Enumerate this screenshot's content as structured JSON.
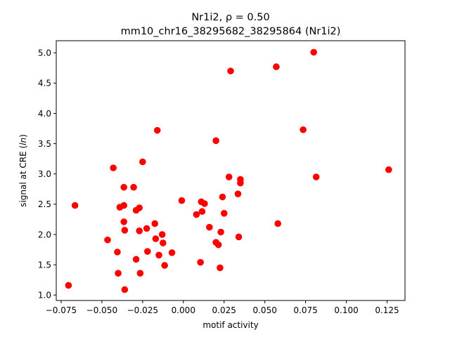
{
  "chart_data": {
    "type": "scatter",
    "title_line1": "Nr1i2, ρ = 0.50",
    "title_line2": "mm10_chr16_38295682_38295864 (Nr1i2)",
    "xlabel": "motif activity",
    "ylabel": "signal at CRE (ln)",
    "xlim": [
      -0.078,
      0.136
    ],
    "ylim": [
      0.91,
      5.2
    ],
    "xticks": [
      -0.075,
      -0.05,
      -0.025,
      0.0,
      0.025,
      0.05,
      0.075,
      0.1,
      0.125
    ],
    "xtick_labels": [
      "−0.075",
      "−0.050",
      "−0.025",
      "0.000",
      "0.025",
      "0.050",
      "0.075",
      "0.100",
      "0.125"
    ],
    "yticks": [
      1.0,
      1.5,
      2.0,
      2.5,
      3.0,
      3.5,
      4.0,
      4.5,
      5.0
    ],
    "ytick_labels": [
      "1.0",
      "1.5",
      "2.0",
      "2.5",
      "3.0",
      "3.5",
      "4.0",
      "4.5",
      "5.0"
    ],
    "grid": false,
    "marker_color": "#ff0000",
    "points": [
      {
        "x": -0.0705,
        "y": 1.16
      },
      {
        "x": -0.0665,
        "y": 2.48
      },
      {
        "x": -0.0465,
        "y": 1.91
      },
      {
        "x": -0.043,
        "y": 3.1
      },
      {
        "x": -0.0405,
        "y": 1.71
      },
      {
        "x": -0.04,
        "y": 1.36
      },
      {
        "x": -0.039,
        "y": 2.45
      },
      {
        "x": -0.0365,
        "y": 2.78
      },
      {
        "x": -0.0365,
        "y": 2.48
      },
      {
        "x": -0.0365,
        "y": 2.21
      },
      {
        "x": -0.036,
        "y": 2.07
      },
      {
        "x": -0.036,
        "y": 1.09
      },
      {
        "x": -0.0305,
        "y": 2.78
      },
      {
        "x": -0.029,
        "y": 2.4
      },
      {
        "x": -0.029,
        "y": 1.59
      },
      {
        "x": -0.027,
        "y": 2.44
      },
      {
        "x": -0.027,
        "y": 2.06
      },
      {
        "x": -0.0265,
        "y": 1.36
      },
      {
        "x": -0.025,
        "y": 3.2
      },
      {
        "x": -0.0225,
        "y": 2.1
      },
      {
        "x": -0.022,
        "y": 1.72
      },
      {
        "x": -0.0175,
        "y": 2.18
      },
      {
        "x": -0.017,
        "y": 1.93
      },
      {
        "x": -0.016,
        "y": 3.72
      },
      {
        "x": -0.015,
        "y": 1.66
      },
      {
        "x": -0.013,
        "y": 2.0
      },
      {
        "x": -0.0125,
        "y": 1.86
      },
      {
        "x": -0.0115,
        "y": 1.49
      },
      {
        "x": -0.007,
        "y": 1.7
      },
      {
        "x": -0.001,
        "y": 2.56
      },
      {
        "x": 0.008,
        "y": 2.33
      },
      {
        "x": 0.0105,
        "y": 1.54
      },
      {
        "x": 0.011,
        "y": 2.54
      },
      {
        "x": 0.0115,
        "y": 2.38
      },
      {
        "x": 0.013,
        "y": 2.51
      },
      {
        "x": 0.016,
        "y": 2.12
      },
      {
        "x": 0.02,
        "y": 3.55
      },
      {
        "x": 0.02,
        "y": 1.87
      },
      {
        "x": 0.0215,
        "y": 1.83
      },
      {
        "x": 0.0225,
        "y": 1.45
      },
      {
        "x": 0.023,
        "y": 2.04
      },
      {
        "x": 0.024,
        "y": 2.62
      },
      {
        "x": 0.025,
        "y": 2.35
      },
      {
        "x": 0.028,
        "y": 2.95
      },
      {
        "x": 0.029,
        "y": 4.7
      },
      {
        "x": 0.0335,
        "y": 2.67
      },
      {
        "x": 0.034,
        "y": 1.96
      },
      {
        "x": 0.035,
        "y": 2.91
      },
      {
        "x": 0.035,
        "y": 2.85
      },
      {
        "x": 0.057,
        "y": 4.77
      },
      {
        "x": 0.058,
        "y": 2.18
      },
      {
        "x": 0.0735,
        "y": 3.73
      },
      {
        "x": 0.08,
        "y": 5.01
      },
      {
        "x": 0.0815,
        "y": 2.95
      },
      {
        "x": 0.126,
        "y": 3.07
      }
    ]
  }
}
